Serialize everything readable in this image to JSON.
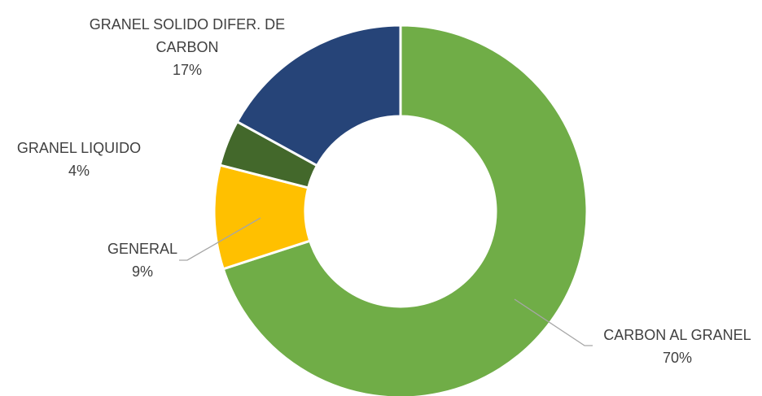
{
  "chart_data": {
    "type": "donut",
    "categories": [
      "CARBON AL GRANEL",
      "GENERAL",
      "GRANEL LIQUIDO",
      "GRANEL SOLIDO DIFER. DE CARBON"
    ],
    "values": [
      70,
      9,
      4,
      17
    ],
    "value_labels": [
      "70%",
      "9%",
      "4%",
      "17%"
    ],
    "colors": [
      "#70ad47",
      "#ffc000",
      "#43682b",
      "#264478"
    ]
  }
}
